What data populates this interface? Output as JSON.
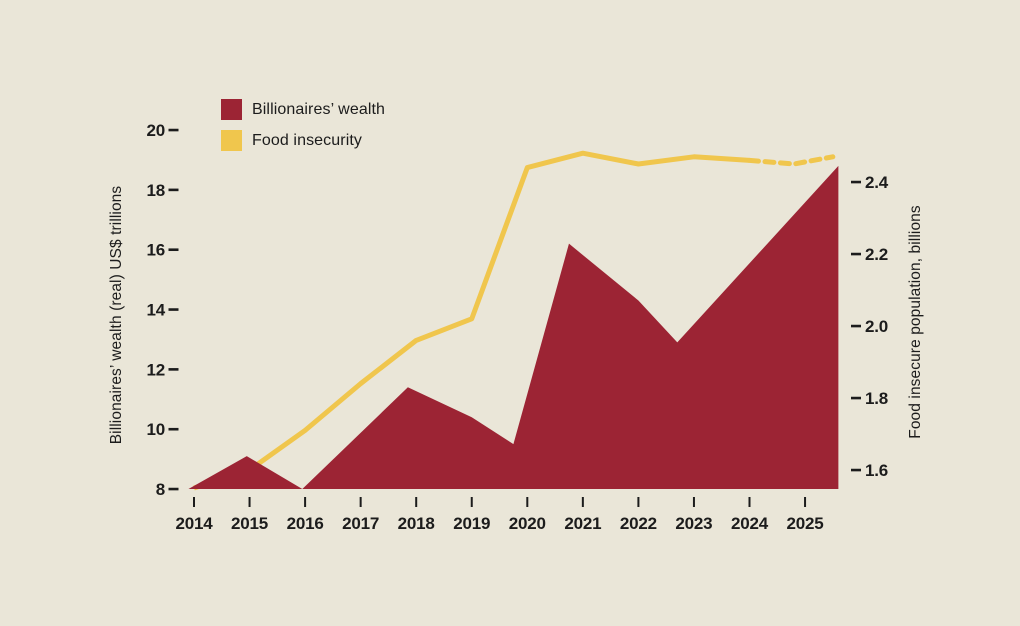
{
  "page": {
    "background": "#eae6d8",
    "text_color": "#1c1c1c"
  },
  "legend": {
    "items": [
      {
        "label": "Billionaires’ wealth",
        "swatch_color": "#9c2434"
      },
      {
        "label": "Food insecurity",
        "swatch_color": "#f0c64d"
      }
    ]
  },
  "chart_data": {
    "type": "area",
    "title": "",
    "x_axis": {
      "years": [
        "2014",
        "2015",
        "2016",
        "2017",
        "2018",
        "2019",
        "2020",
        "2021",
        "2022",
        "2023",
        "2024",
        "2025"
      ]
    },
    "left_axis": {
      "label": "Billionaires’ wealth (real) US$ trillions",
      "ticks": [
        8,
        10,
        12,
        14,
        16,
        18,
        20
      ],
      "min": 8,
      "max": 20
    },
    "right_axis": {
      "label": "Food insecure population, billions",
      "ticks": [
        "1.6",
        "1.8",
        "2.0",
        "2.2",
        "2.4"
      ]
    },
    "series": [
      {
        "name": "Billionaires’ wealth",
        "kind": "area",
        "axis": "left",
        "color": "#9c2434",
        "unit": "US$ trillions (real)",
        "points": [
          [
            2013.9,
            8.0
          ],
          [
            2014.95,
            9.1
          ],
          [
            2015.95,
            8.0
          ],
          [
            2017.85,
            11.4
          ],
          [
            2019,
            10.4
          ],
          [
            2019.75,
            9.5
          ],
          [
            2020.75,
            16.2
          ],
          [
            2022,
            14.3
          ],
          [
            2022.7,
            12.9
          ],
          [
            2025.6,
            18.8
          ]
        ]
      },
      {
        "name": "Food insecurity",
        "kind": "line",
        "axis": "right",
        "color": "#f0c64d",
        "unit": "billions of people",
        "points": [
          [
            2014,
            1.55
          ],
          [
            2015,
            1.6
          ],
          [
            2016,
            1.71
          ],
          [
            2017,
            1.84
          ],
          [
            2018,
            1.96
          ],
          [
            2019,
            2.02
          ],
          [
            2020,
            2.44
          ],
          [
            2021,
            2.48
          ],
          [
            2022,
            2.45
          ],
          [
            2023,
            2.47
          ],
          [
            2024,
            2.46
          ]
        ],
        "projection": {
          "style": "dashed",
          "points": [
            [
              2024,
              2.46
            ],
            [
              2024.8,
              2.45
            ],
            [
              2025.5,
              2.47
            ]
          ]
        }
      }
    ]
  }
}
